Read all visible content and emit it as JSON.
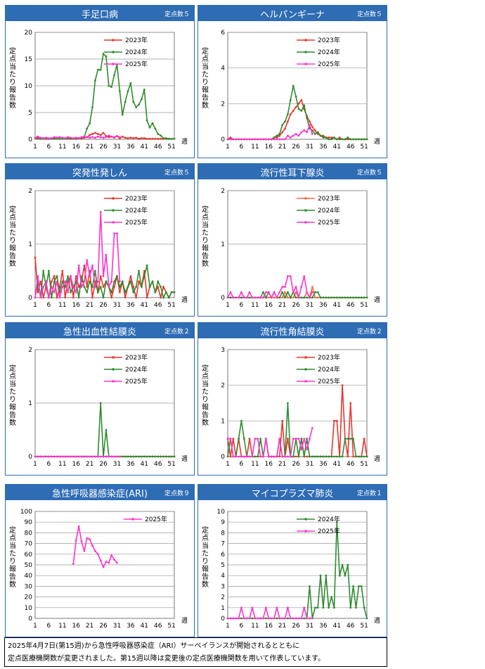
{
  "panels": [
    {
      "title": "手足口病",
      "sub": "定点数５",
      "ylabel": "定点当たり報告数",
      "ylim": [
        0,
        20
      ],
      "yticks": [
        0,
        5,
        10,
        15,
        20
      ],
      "series": [
        {
          "name": "2023年",
          "color": "#e8352c",
          "values": [
            0.2,
            0.1,
            0.1,
            0.1,
            0.1,
            0.1,
            0.1,
            0.1,
            0.1,
            0.1,
            0.1,
            0.1,
            0.1,
            0.1,
            0.1,
            0.1,
            0.2,
            0.2,
            0.3,
            0.4,
            0.8,
            1.0,
            1.2,
            1.0,
            0.8,
            1.2,
            0.6,
            0.4,
            0.5,
            0.3,
            0.6,
            0.2,
            0.5,
            0.3,
            0.2,
            0.3,
            0.2,
            0.3,
            0.1,
            0.2,
            0.2,
            0.1,
            0.1,
            0.1,
            0.1,
            0.1,
            0.1,
            0.1,
            0.1,
            0.1,
            0.1,
            0.1
          ]
        },
        {
          "name": "2024年",
          "color": "#2e8b2e",
          "values": [
            0.3,
            0.2,
            0.1,
            0.2,
            0.1,
            0.1,
            0.1,
            0.2,
            0.1,
            0.1,
            0.1,
            0.1,
            0.2,
            0.1,
            0.2,
            0.1,
            0.2,
            0.3,
            0.5,
            2.0,
            3.0,
            6.0,
            11.0,
            13.0,
            13.0,
            16.0,
            15.5,
            10.0,
            9.8,
            12.0,
            14.0,
            9.0,
            4.6,
            7.0,
            9.0,
            10.5,
            7.0,
            6.0,
            6.5,
            7.5,
            9.3,
            3.5,
            2.2,
            3.0,
            2.0,
            1.0,
            0.7,
            0.2,
            0.2,
            0.1,
            0.1,
            0.1
          ]
        },
        {
          "name": "2025年",
          "color": "#ff33cc",
          "values": [
            0.3,
            0.5,
            0.3,
            0.2,
            0.3,
            0.2,
            0.2,
            0.4,
            0.3,
            0.4,
            0.3,
            0.2,
            0.4,
            0.3,
            0.2,
            0.3,
            0.2,
            0.4,
            0.5,
            0.4,
            0.3,
            0.4,
            0.3,
            0.5,
            0.4,
            0.3,
            0.4,
            0.7,
            0.5,
            0.4,
            0.6,
            0.4
          ]
        }
      ]
    },
    {
      "title": "ヘルパンギーナ",
      "sub": "定点数５",
      "ylabel": "定点当たり報告数",
      "ylim": [
        0,
        6
      ],
      "yticks": [
        0,
        2,
        4,
        6
      ],
      "series": [
        {
          "name": "2023年",
          "color": "#e8352c",
          "values": [
            0,
            0.1,
            0,
            0,
            0,
            0,
            0,
            0,
            0,
            0,
            0,
            0,
            0,
            0,
            0,
            0,
            0,
            0.1,
            0.1,
            0.2,
            0.4,
            0.6,
            1.0,
            1.4,
            1.6,
            1.8,
            2.0,
            2.2,
            1.7,
            1.3,
            1.0,
            0.7,
            0.5,
            0.3,
            0.2,
            0.2,
            0.1,
            0.1,
            0.1,
            0.1,
            0,
            0.1,
            0,
            0,
            0,
            0,
            0,
            0,
            0,
            0,
            0,
            0
          ]
        },
        {
          "name": "2024年",
          "color": "#2e8b2e",
          "values": [
            0,
            0,
            0,
            0,
            0,
            0,
            0,
            0,
            0,
            0,
            0,
            0,
            0,
            0,
            0,
            0,
            0,
            0.1,
            0.2,
            0.3,
            0.8,
            1.0,
            1.4,
            2.2,
            3.0,
            2.4,
            1.7,
            1.6,
            1.9,
            1.2,
            0.6,
            0.5,
            0.3,
            0.4,
            0.2,
            0.1,
            0.1,
            0,
            0,
            0.1,
            0,
            0,
            0,
            0,
            0.1,
            0,
            0,
            0,
            0,
            0,
            0,
            0
          ]
        },
        {
          "name": "2025年",
          "color": "#ff33cc",
          "values": [
            0,
            0,
            0,
            0,
            0,
            0,
            0,
            0,
            0,
            0,
            0,
            0,
            0,
            0,
            0,
            0,
            0,
            0,
            0,
            0,
            0,
            0,
            0.2,
            0.1,
            0.2,
            0.3,
            0.2,
            0.4,
            0.5,
            0.4,
            0.8,
            0.3
          ]
        }
      ]
    },
    {
      "title": "突発性発しん",
      "sub": "定点数５",
      "ylabel": "定点当たり報告数",
      "ylim": [
        0,
        2
      ],
      "yticks": [
        0,
        1,
        2
      ],
      "series": [
        {
          "name": "2023年",
          "color": "#e8352c",
          "values": [
            0.75,
            0.1,
            0.3,
            0,
            0.2,
            0,
            0.3,
            0.4,
            0,
            0.2,
            0.5,
            0,
            0.3,
            0.4,
            0,
            0.4,
            0.2,
            0.3,
            0.6,
            0.2,
            0.5,
            0,
            0.3,
            0.1,
            0.4,
            0.2,
            0.3,
            0.2,
            0,
            0.2,
            0.4,
            0.1,
            0.3,
            0,
            0.2,
            0.4,
            0.2,
            0,
            0.3,
            0.2,
            0.5,
            0,
            0.2,
            0.3,
            0.1,
            0.2,
            0,
            0.2,
            0.1,
            0,
            0.1,
            0.1
          ]
        },
        {
          "name": "2024年",
          "color": "#2e8b2e",
          "values": [
            0,
            0.3,
            0,
            0.5,
            0.2,
            0.5,
            0,
            0.3,
            0.4,
            0.1,
            0.3,
            0.2,
            0.4,
            0.1,
            0.2,
            0.3,
            0,
            0.4,
            0.2,
            0.1,
            0.3,
            0.2,
            0.5,
            0.1,
            0.2,
            0,
            0.3,
            0.2,
            0.1,
            0.3,
            0.4,
            0.2,
            0.3,
            0.1,
            0.2,
            0.3,
            0.1,
            0.2,
            0.5,
            0.2,
            0.4,
            0.6,
            0.2,
            0.3,
            0.1,
            0.3,
            0.2,
            0,
            0.1,
            0,
            0.1,
            0.1
          ]
        },
        {
          "name": "2025年",
          "color": "#ff33cc",
          "values": [
            0,
            0.4,
            0,
            0.2,
            0.3,
            0,
            0.2,
            0.1,
            0.3,
            0,
            0.2,
            0.3,
            0.1,
            0.4,
            0.2,
            0.1,
            0.6,
            0.2,
            0.3,
            0.7,
            0.4,
            0.6,
            0.2,
            0.3,
            1.6,
            0.4,
            0.8,
            0.2,
            0.3,
            1.2,
            1.2,
            0.3
          ]
        }
      ]
    },
    {
      "title": "流行性耳下腺炎",
      "sub": "定点数５",
      "ylabel": "定点当たり報告数",
      "ylim": [
        0,
        2
      ],
      "yticks": [
        0,
        1,
        2
      ],
      "series": [
        {
          "name": "2023年",
          "color": "#ff6644",
          "values": [
            0,
            0,
            0,
            0,
            0,
            0,
            0,
            0,
            0,
            0,
            0,
            0,
            0,
            0,
            0,
            0,
            0,
            0,
            0,
            0,
            0,
            0.1,
            0,
            0,
            0,
            0.1,
            0,
            0,
            0,
            0.1,
            0,
            0.2,
            0,
            0,
            0,
            0,
            0,
            0,
            0,
            0,
            0,
            0,
            0,
            0,
            0,
            0,
            0,
            0,
            0,
            0,
            0,
            0
          ]
        },
        {
          "name": "2024年",
          "color": "#2e8b2e",
          "values": [
            0,
            0,
            0,
            0,
            0,
            0,
            0,
            0,
            0,
            0,
            0,
            0,
            0,
            0.1,
            0,
            0.1,
            0,
            0.1,
            0,
            0,
            0.1,
            0,
            0.1,
            0,
            0.1,
            0,
            0,
            0,
            0,
            0,
            0,
            0,
            0.1,
            0.1,
            0,
            0,
            0,
            0,
            0,
            0,
            0,
            0,
            0,
            0,
            0,
            0,
            0,
            0,
            0,
            0,
            0,
            0
          ]
        },
        {
          "name": "2025年",
          "color": "#ff33cc",
          "values": [
            0,
            0.1,
            0,
            0,
            0,
            0.1,
            0,
            0,
            0.1,
            0,
            0,
            0,
            0,
            0,
            0.1,
            0.1,
            0,
            0.1,
            0,
            0.1,
            0.2,
            0.2,
            0.4,
            0.4,
            0.1,
            0.2,
            0,
            0.2,
            0.4,
            0.1,
            0,
            0.1
          ]
        }
      ]
    },
    {
      "title": "急性出血性結膜炎",
      "sub": "定点数２",
      "ylabel": "定点当たり報告数",
      "ylim": [
        0,
        2
      ],
      "yticks": [
        0,
        1,
        2
      ],
      "series": [
        {
          "name": "2023年",
          "color": "#e8352c",
          "values": [
            0,
            0,
            0,
            0,
            0,
            0,
            0,
            0,
            0,
            0,
            0,
            0,
            0,
            0,
            0,
            0,
            0,
            0,
            0,
            0,
            0,
            0,
            0,
            0,
            0,
            0,
            0,
            0,
            0,
            0,
            0,
            0,
            0,
            0,
            0,
            0,
            0,
            0,
            0,
            0,
            0,
            0,
            0,
            0,
            0,
            0,
            0,
            0,
            0,
            0,
            0,
            0
          ]
        },
        {
          "name": "2024年",
          "color": "#2e8b2e",
          "values": [
            0,
            0,
            0,
            0,
            0,
            0,
            0,
            0,
            0,
            0,
            0,
            0,
            0,
            0,
            0,
            0,
            0,
            0,
            0,
            0,
            0,
            0,
            0,
            0,
            1.0,
            0,
            0.5,
            0,
            0,
            0,
            0,
            0,
            0,
            0,
            0,
            0,
            0,
            0,
            0,
            0,
            0,
            0,
            0,
            0,
            0,
            0,
            0,
            0,
            0,
            0,
            0,
            0
          ]
        },
        {
          "name": "2025年",
          "color": "#ff33cc",
          "values": [
            0,
            0,
            0,
            0,
            0,
            0,
            0,
            0,
            0,
            0,
            0,
            0,
            0,
            0,
            0,
            0,
            0,
            0,
            0,
            0,
            0,
            0,
            0,
            0,
            0,
            0,
            0,
            0,
            0,
            0,
            0,
            0
          ]
        }
      ]
    },
    {
      "title": "流行性角結膜炎",
      "sub": "定点数２",
      "ylabel": "定点当たり報告数",
      "ylim": [
        0,
        3
      ],
      "yticks": [
        0,
        1,
        2,
        3
      ],
      "series": [
        {
          "name": "2023年",
          "color": "#e8352c",
          "values": [
            0.5,
            0,
            0.5,
            0,
            0.5,
            0,
            0,
            0,
            0.5,
            0,
            0,
            0,
            0,
            0,
            0.5,
            0,
            0,
            0,
            0,
            0,
            1.0,
            0,
            0.5,
            0,
            0,
            0,
            0,
            0.5,
            0,
            0,
            0,
            0,
            0,
            0,
            0,
            0,
            0,
            0,
            0,
            1.0,
            1.0,
            0,
            2.0,
            0.5,
            0,
            1.5,
            0,
            0,
            0,
            0,
            0.5,
            0
          ]
        },
        {
          "name": "2024年",
          "color": "#2e8b2e",
          "values": [
            0,
            0.5,
            0,
            0,
            0.5,
            1.0,
            0.5,
            0,
            0,
            0,
            0,
            0,
            0.5,
            0,
            0.5,
            0,
            0,
            0,
            0,
            0.5,
            0,
            0,
            1.5,
            0,
            0,
            0.5,
            0,
            0.5,
            0,
            0.5,
            0,
            0,
            0,
            0,
            0,
            0,
            0,
            0,
            0,
            0,
            0,
            0,
            0,
            0.5,
            0.5,
            0.5,
            0.5,
            0,
            0,
            0,
            0,
            0
          ]
        },
        {
          "name": "2025年",
          "color": "#ff33cc",
          "values": [
            0.5,
            0.5,
            0,
            0,
            0,
            0,
            0,
            0,
            0,
            0,
            0.5,
            0.5,
            0,
            0,
            0.5,
            0,
            0,
            0,
            0,
            0.5,
            0,
            0,
            0,
            0,
            0.5,
            0.5,
            0.5,
            0.2,
            0.5,
            0.2,
            0.5,
            0.8
          ]
        }
      ]
    },
    {
      "title": "急性呼吸器感染症(ARI)",
      "sub": "定点数９",
      "ylabel": "定点当たり報告数",
      "ylim": [
        0,
        100
      ],
      "yticks": [
        0,
        10,
        20,
        30,
        40,
        50,
        60,
        70,
        80,
        90,
        100
      ],
      "series": [
        {
          "name": "2025年",
          "color": "#ff33cc",
          "x": [
            15,
            16,
            17,
            18,
            19,
            20,
            21,
            22,
            23,
            24,
            25,
            26,
            27,
            28,
            29,
            30,
            31
          ],
          "values": [
            51,
            73,
            86,
            72,
            63,
            75,
            74,
            68,
            63,
            60,
            54,
            48,
            53,
            52,
            59,
            55,
            52
          ]
        }
      ]
    },
    {
      "title": "マイコプラズマ肺炎",
      "sub": "定点数１",
      "ylabel": "定点当たり報告数",
      "ylim": [
        0,
        10
      ],
      "yticks": [
        0,
        1,
        2,
        3,
        4,
        5,
        6,
        7,
        8,
        9,
        10
      ],
      "series": [
        {
          "name": "2024年",
          "color": "#2e8b2e",
          "values": [
            0,
            0,
            0,
            0,
            0,
            0,
            0,
            0,
            0,
            0,
            0,
            0,
            0,
            0,
            0,
            0,
            0,
            0,
            0,
            0,
            0,
            0,
            0,
            0,
            0,
            0,
            0,
            0,
            0,
            0,
            3,
            0,
            1,
            1,
            4,
            1,
            4,
            1,
            2,
            1,
            9,
            4,
            5,
            4,
            5,
            1,
            3,
            1,
            3,
            3,
            1,
            0
          ]
        },
        {
          "name": "2025年",
          "color": "#ff33cc",
          "values": [
            0,
            0,
            0,
            0,
            0,
            1,
            0,
            0,
            0,
            1,
            0,
            0,
            0,
            0,
            1,
            0,
            0,
            0,
            1,
            0,
            0,
            0,
            1,
            0,
            0,
            0,
            0,
            0,
            1,
            0,
            0,
            0
          ]
        }
      ]
    }
  ],
  "xticks": [
    "1",
    "6",
    "11",
    "16",
    "21",
    "26",
    "31",
    "36",
    "41",
    "46",
    "51"
  ],
  "xunit": "週",
  "note": {
    "line1": "2025年4月7日(第15週)から急性呼吸器感染症（ARI）サーベイランスが開始されるとともに",
    "line2": "定点医療機関数が変更されました。第15週以降は変更後の定点医療機関数を用いて作表しています。"
  }
}
